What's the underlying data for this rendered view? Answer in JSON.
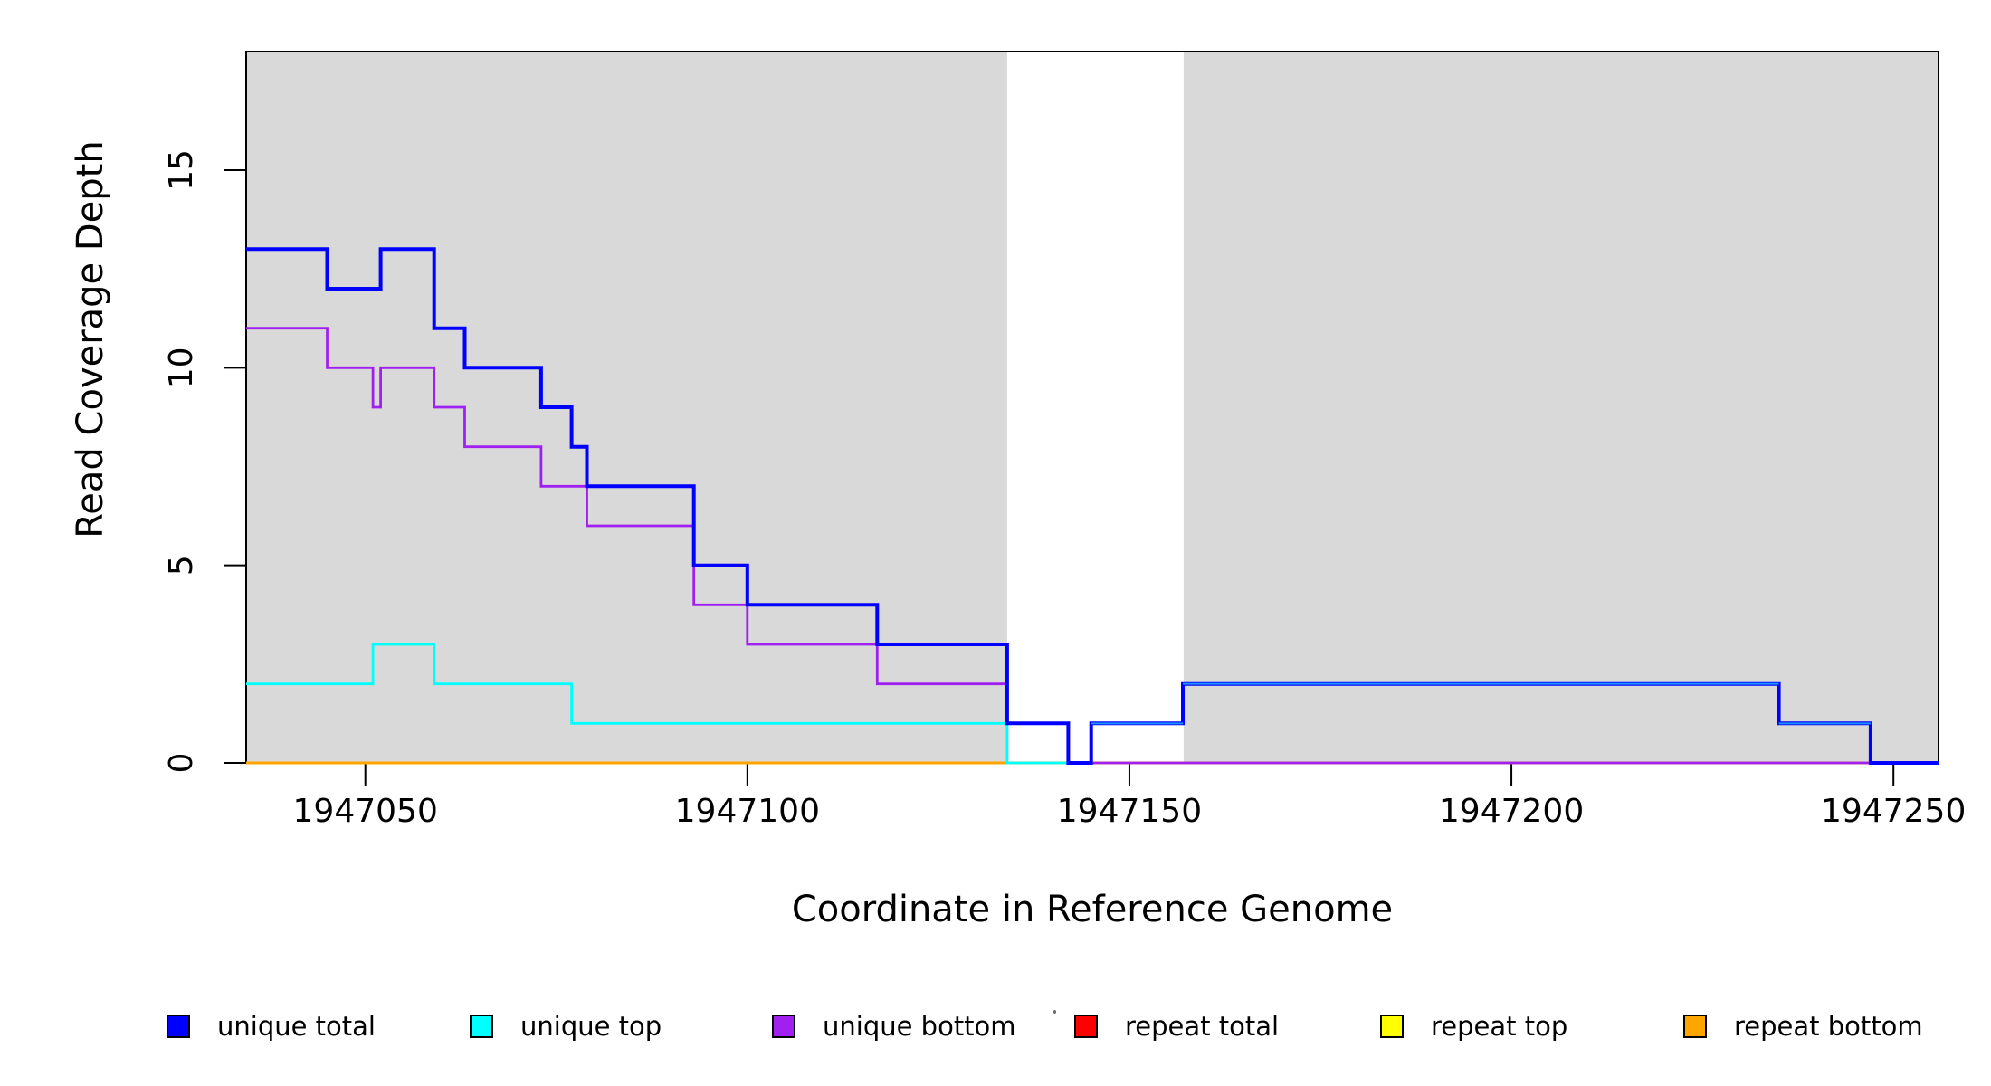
{
  "chart_data": {
    "type": "line",
    "subtype": "step-post",
    "title": "",
    "xlabel": "Coordinate in Reference Genome",
    "ylabel": "Read Coverage Depth",
    "xlim": [
      1947034.4,
      1947255.9
    ],
    "ylim": [
      0,
      18
    ],
    "x_ticks": [
      1947050,
      1947100,
      1947150,
      1947200,
      1947250
    ],
    "y_ticks": [
      0,
      5,
      10,
      15
    ],
    "grid": false,
    "legend_position": "bottom-horizontal",
    "background_color": "#ffffff",
    "shade_color": "#d9d9d9",
    "shaded_regions": [
      {
        "x0": 1947034.4,
        "x1": 1947134.0,
        "note": "gray uniqueness block left"
      },
      {
        "x0": 1947157.1,
        "x1": 1947255.9,
        "note": "gray uniqueness block right"
      }
    ],
    "series": [
      {
        "name": "repeat top",
        "color": "#FFFF00",
        "width": 2,
        "steps": [
          [
            1947034.4,
            0
          ]
        ]
      },
      {
        "name": "repeat total",
        "color": "#FF0000",
        "width": 2,
        "steps": [
          [
            1947034.4,
            0
          ]
        ]
      },
      {
        "name": "repeat bottom",
        "color": "#FFA500",
        "width": 3,
        "steps": [
          [
            1947034.4,
            0
          ]
        ]
      },
      {
        "name": "unique top",
        "color": "#00FFFF",
        "width": 2.8,
        "steps": [
          [
            1947034.4,
            2
          ],
          [
            1947051,
            3
          ],
          [
            1947059,
            2
          ],
          [
            1947077,
            1
          ],
          [
            1947134,
            0
          ],
          [
            1947145,
            1
          ],
          [
            1947157,
            2
          ],
          [
            1947235,
            1
          ],
          [
            1947247,
            0
          ]
        ]
      },
      {
        "name": "unique bottom",
        "color": "#A020F0",
        "width": 2.8,
        "steps": [
          [
            1947034.4,
            11
          ],
          [
            1947045,
            10
          ],
          [
            1947051,
            9
          ],
          [
            1947052,
            10
          ],
          [
            1947059,
            9
          ],
          [
            1947063,
            8
          ],
          [
            1947073,
            7
          ],
          [
            1947079,
            6
          ],
          [
            1947093,
            4
          ],
          [
            1947100,
            3
          ],
          [
            1947117,
            2
          ],
          [
            1947134,
            1
          ],
          [
            1947142,
            0
          ]
        ]
      },
      {
        "name": "unique total",
        "color": "#0000FF",
        "width": 4,
        "steps": [
          [
            1947034.4,
            13
          ],
          [
            1947045,
            12
          ],
          [
            1947052,
            13
          ],
          [
            1947059,
            11
          ],
          [
            1947063,
            10
          ],
          [
            1947073,
            9
          ],
          [
            1947077,
            8
          ],
          [
            1947079,
            7
          ],
          [
            1947093,
            5
          ],
          [
            1947100,
            4
          ],
          [
            1947117,
            3
          ],
          [
            1947134,
            1
          ],
          [
            1947142,
            0
          ],
          [
            1947145,
            1
          ],
          [
            1947157,
            2
          ],
          [
            1947235,
            1
          ],
          [
            1947247,
            0
          ]
        ]
      }
    ],
    "overlap_overlay": {
      "note": "where unique total and unique top coincide after the gap the line renders azure",
      "color": "#1E90FF",
      "width": 2,
      "segments": [
        [
          1947145,
          1947157,
          1
        ],
        [
          1947157,
          1947235,
          2
        ],
        [
          1947235,
          1947247,
          1
        ]
      ]
    }
  },
  "axes": {
    "x_title": "Coordinate in Reference Genome",
    "y_title": "Read Coverage Depth",
    "x_tick_labels": [
      "1947050",
      "1947100",
      "1947150",
      "1947200",
      "1947250"
    ],
    "y_tick_labels": [
      "0",
      "5",
      "10",
      "15"
    ]
  },
  "legend": {
    "items": [
      {
        "label": "unique total",
        "color": "#0000FF"
      },
      {
        "label": "unique top",
        "color": "#00FFFF"
      },
      {
        "label": "unique bottom",
        "color": "#A020F0"
      },
      {
        "label": "repeat total",
        "color": "#FF0000"
      },
      {
        "label": "repeat top",
        "color": "#FFFF00"
      },
      {
        "label": "repeat bottom",
        "color": "#FFA500"
      }
    ]
  }
}
